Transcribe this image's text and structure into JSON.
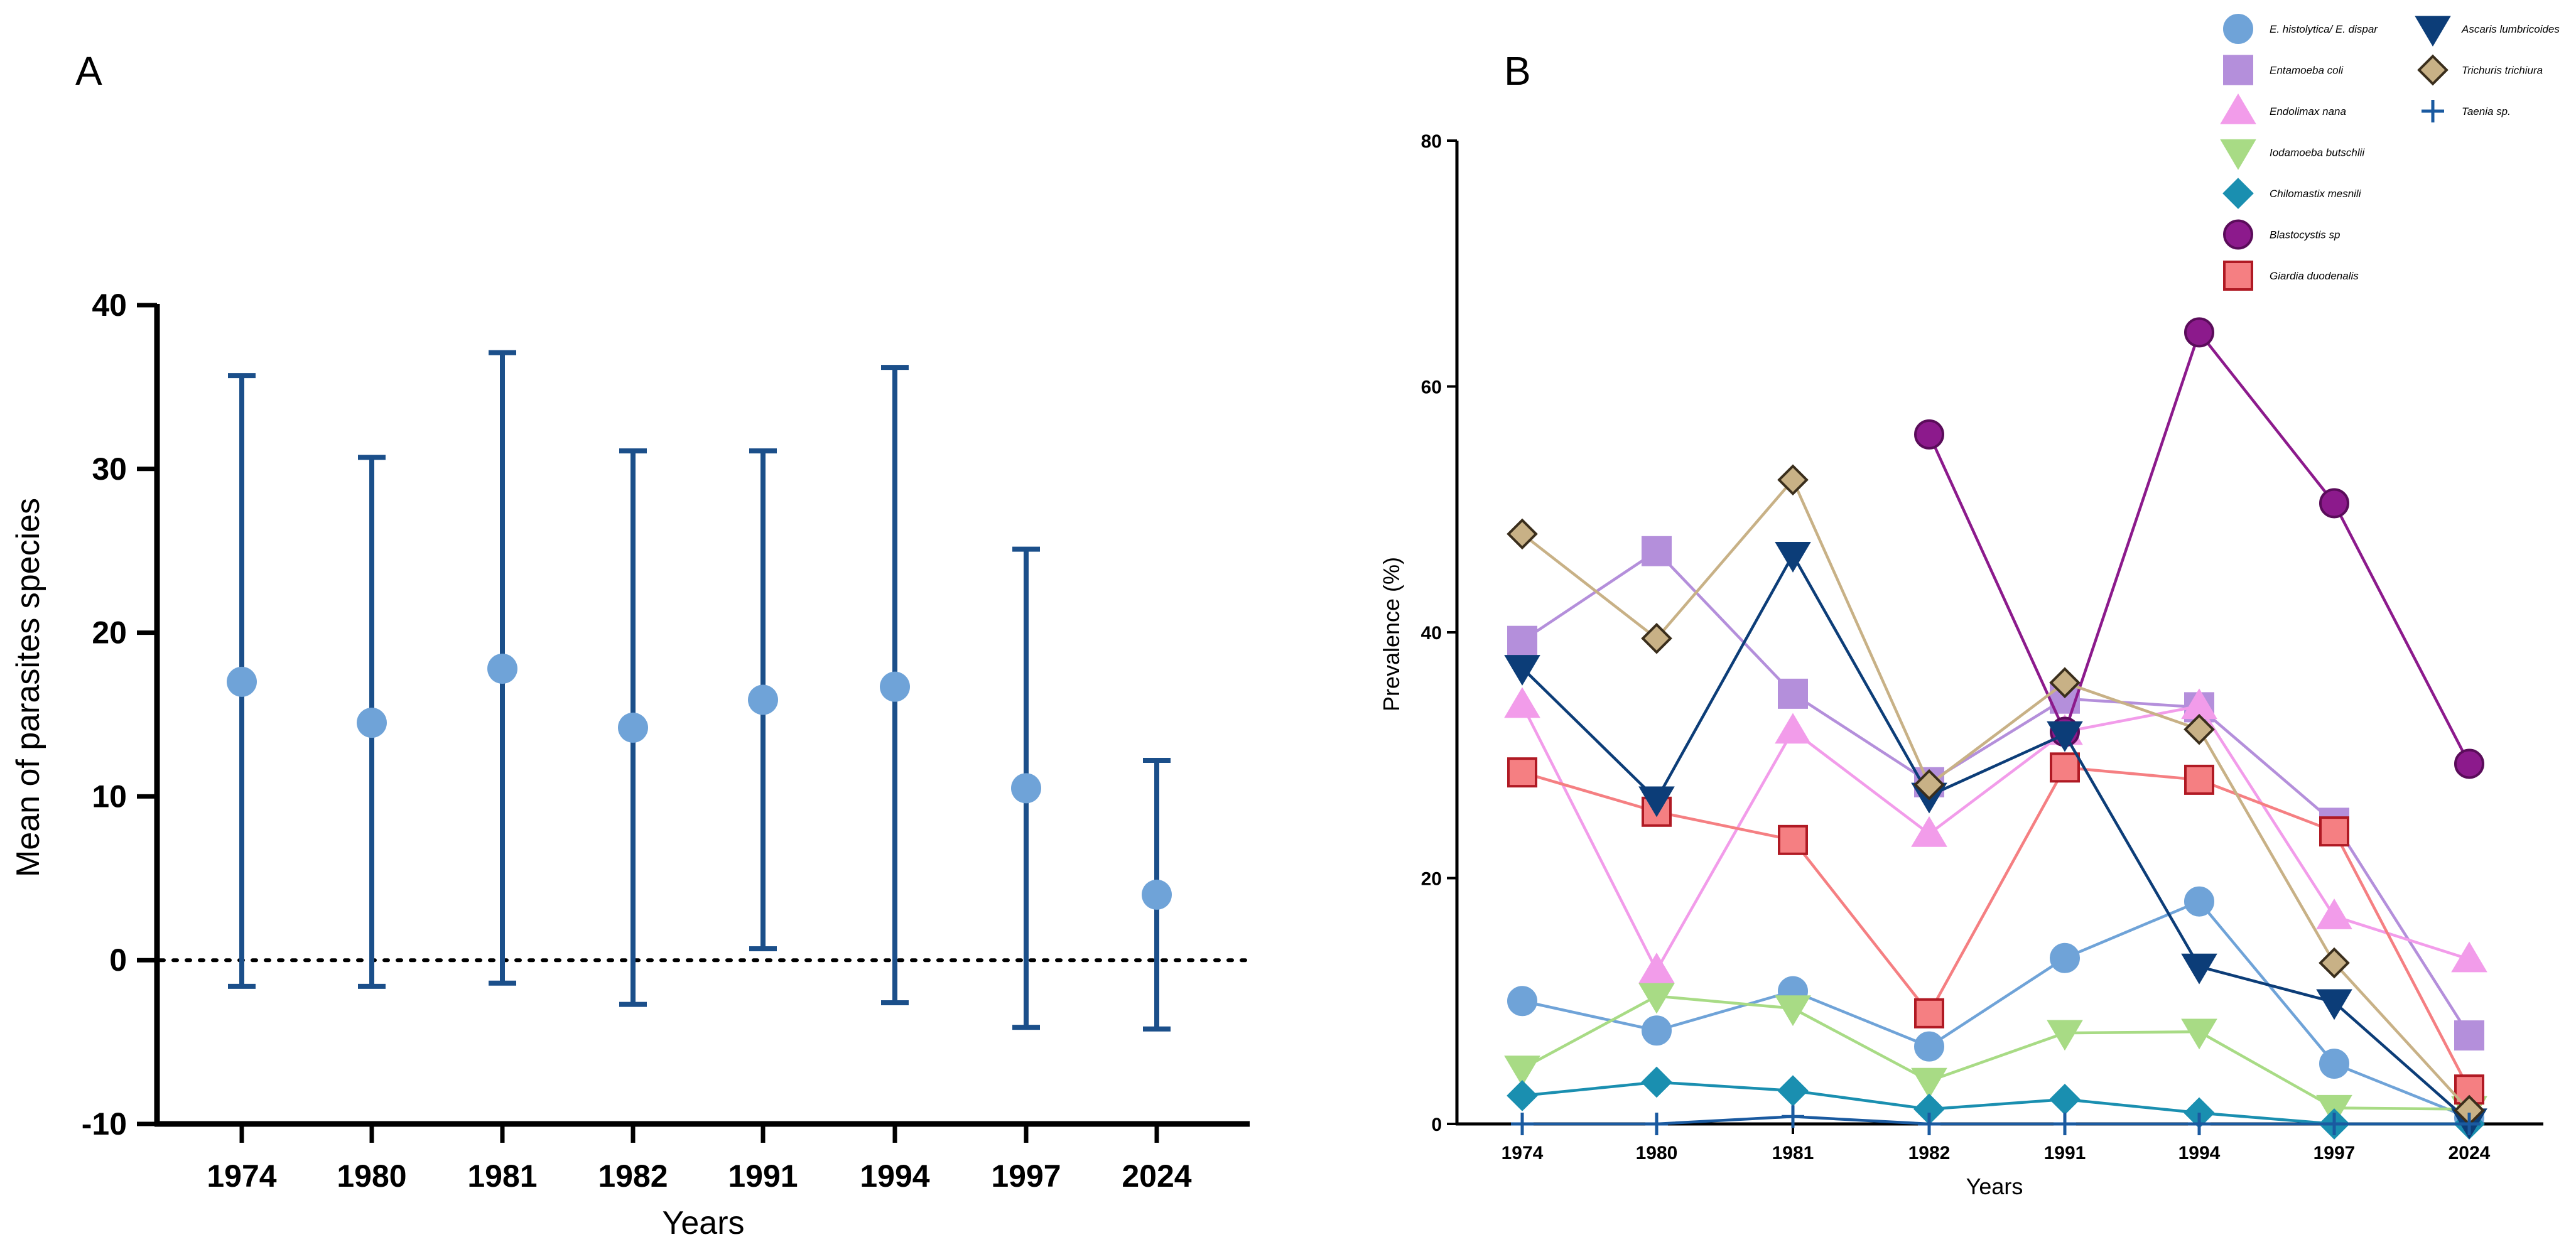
{
  "chart_data": [
    {
      "panel": "A",
      "type": "errorbar",
      "categories": [
        "1974",
        "1980",
        "1981",
        "1982",
        "1991",
        "1994",
        "1997",
        "2024"
      ],
      "mean": [
        17.0,
        14.5,
        17.8,
        14.2,
        15.9,
        16.7,
        10.5,
        4.0
      ],
      "lower": [
        -1.6,
        -1.6,
        -1.4,
        -2.7,
        0.7,
        -2.6,
        -4.1,
        -4.2
      ],
      "upper": [
        35.7,
        30.7,
        37.1,
        31.1,
        31.1,
        36.2,
        25.1,
        12.2
      ],
      "xlabel": "Years",
      "ylabel": "Mean of parasites species",
      "ylim": [
        -10,
        40
      ],
      "yticks": [
        "-10",
        "0",
        "10",
        "20",
        "30",
        "40"
      ],
      "reference_line": 0,
      "colors": {
        "line": "#1b4f8a",
        "marker": "#6fa3d8"
      }
    },
    {
      "panel": "B",
      "type": "line",
      "categories": [
        "1974",
        "1980",
        "1981",
        "1982",
        "1991",
        "1994",
        "1997",
        "2024"
      ],
      "xlabel": "Years",
      "ylabel": "Prevalence (%)",
      "ylim": [
        0,
        80
      ],
      "yticks": [
        "0",
        "20",
        "40",
        "60",
        "80"
      ],
      "legend_position": "top-right",
      "series": [
        {
          "name": "E. histolytica/ E. dispar",
          "marker": "circle",
          "color": "#6fa3d8",
          "stroke": "#6fa3d8",
          "values": [
            10.0,
            7.6,
            10.8,
            6.3,
            13.5,
            18.1,
            4.9,
            0.5
          ]
        },
        {
          "name": "Entamoeba coli",
          "marker": "square",
          "color": "#b48fdb",
          "stroke": "#b48fdb",
          "values": [
            39.3,
            46.6,
            35.0,
            27.8,
            34.6,
            33.9,
            24.5,
            7.2
          ]
        },
        {
          "name": "Endolimax nana",
          "marker": "triangle-up",
          "color": "#f29cea",
          "stroke": "#f29cea",
          "values": [
            34.1,
            12.5,
            32.0,
            23.6,
            31.9,
            34.0,
            16.9,
            13.4
          ]
        },
        {
          "name": "Iodamoeba butschlii",
          "marker": "triangle-down",
          "color": "#a8db85",
          "stroke": "#a8db85",
          "values": [
            4.5,
            10.4,
            9.4,
            3.5,
            7.4,
            7.5,
            1.3,
            1.2
          ]
        },
        {
          "name": "Chilomastix mesnili",
          "marker": "diamond",
          "color": "#1a8fb0",
          "stroke": "#1a8fb0",
          "values": [
            2.3,
            3.4,
            2.7,
            1.2,
            2.0,
            0.9,
            0.0,
            0.0
          ]
        },
        {
          "name": "Blastocystis sp",
          "marker": "circle",
          "color": "#8c1a8c",
          "stroke": "#5a0c5a",
          "values": [
            null,
            null,
            null,
            56.1,
            31.9,
            64.4,
            50.5,
            29.3
          ]
        },
        {
          "name": "Giardia duodenalis",
          "marker": "square",
          "color": "#f57f82",
          "stroke": "#b01a24",
          "values": [
            28.6,
            25.4,
            23.1,
            9.0,
            29.0,
            28.0,
            23.8,
            2.8
          ]
        },
        {
          "name": "Ascaris lumbricoides",
          "marker": "triangle-down",
          "color": "#0c3d78",
          "stroke": "#0c3d78",
          "values": [
            37.1,
            26.4,
            46.3,
            26.7,
            31.7,
            12.8,
            9.9,
            0.2
          ]
        },
        {
          "name": "Trichuris trichiura",
          "marker": "diamond",
          "color": "#c8b186",
          "stroke": "#3a2e1c",
          "values": [
            48.0,
            39.5,
            52.4,
            27.6,
            35.9,
            32.1,
            13.1,
            1.1
          ]
        },
        {
          "name": "Taenia sp.",
          "marker": "plus",
          "color": "#1a5aa0",
          "stroke": "#1a5aa0",
          "values": [
            0.0,
            0.0,
            0.6,
            0.0,
            0.0,
            0.0,
            0.0,
            0.0
          ]
        }
      ]
    }
  ],
  "panel_labels": {
    "a": "A",
    "b": "B"
  }
}
